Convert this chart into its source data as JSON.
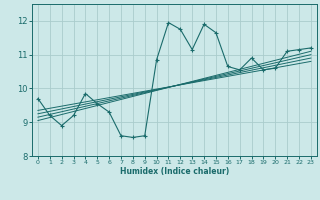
{
  "xlabel": "Humidex (Indice chaleur)",
  "ylabel": "",
  "bg_color": "#cce8e8",
  "grid_color": "#aacccc",
  "line_color": "#1a6b6b",
  "xlim": [
    -0.5,
    23.5
  ],
  "ylim": [
    8.0,
    12.5
  ],
  "yticks": [
    8,
    9,
    10,
    11,
    12
  ],
  "xticks": [
    0,
    1,
    2,
    3,
    4,
    5,
    6,
    7,
    8,
    9,
    10,
    11,
    12,
    13,
    14,
    15,
    16,
    17,
    18,
    19,
    20,
    21,
    22,
    23
  ],
  "main_line_x": [
    0,
    1,
    2,
    3,
    4,
    5,
    6,
    7,
    8,
    9,
    10,
    11,
    12,
    13,
    14,
    15,
    16,
    17,
    18,
    19,
    20,
    21,
    22,
    23
  ],
  "main_line_y": [
    9.7,
    9.2,
    8.9,
    9.2,
    9.85,
    9.55,
    9.3,
    8.6,
    8.55,
    8.6,
    10.85,
    11.95,
    11.75,
    11.15,
    11.9,
    11.65,
    10.65,
    10.55,
    10.9,
    10.55,
    10.6,
    11.1,
    11.15,
    11.2
  ],
  "reg_lines": [
    {
      "x": [
        0,
        23
      ],
      "y": [
        9.05,
        11.1
      ]
    },
    {
      "x": [
        0,
        23
      ],
      "y": [
        9.15,
        11.0
      ]
    },
    {
      "x": [
        0,
        23
      ],
      "y": [
        9.25,
        10.9
      ]
    },
    {
      "x": [
        0,
        23
      ],
      "y": [
        9.35,
        10.8
      ]
    }
  ],
  "figsize": [
    3.2,
    2.0
  ],
  "dpi": 100
}
